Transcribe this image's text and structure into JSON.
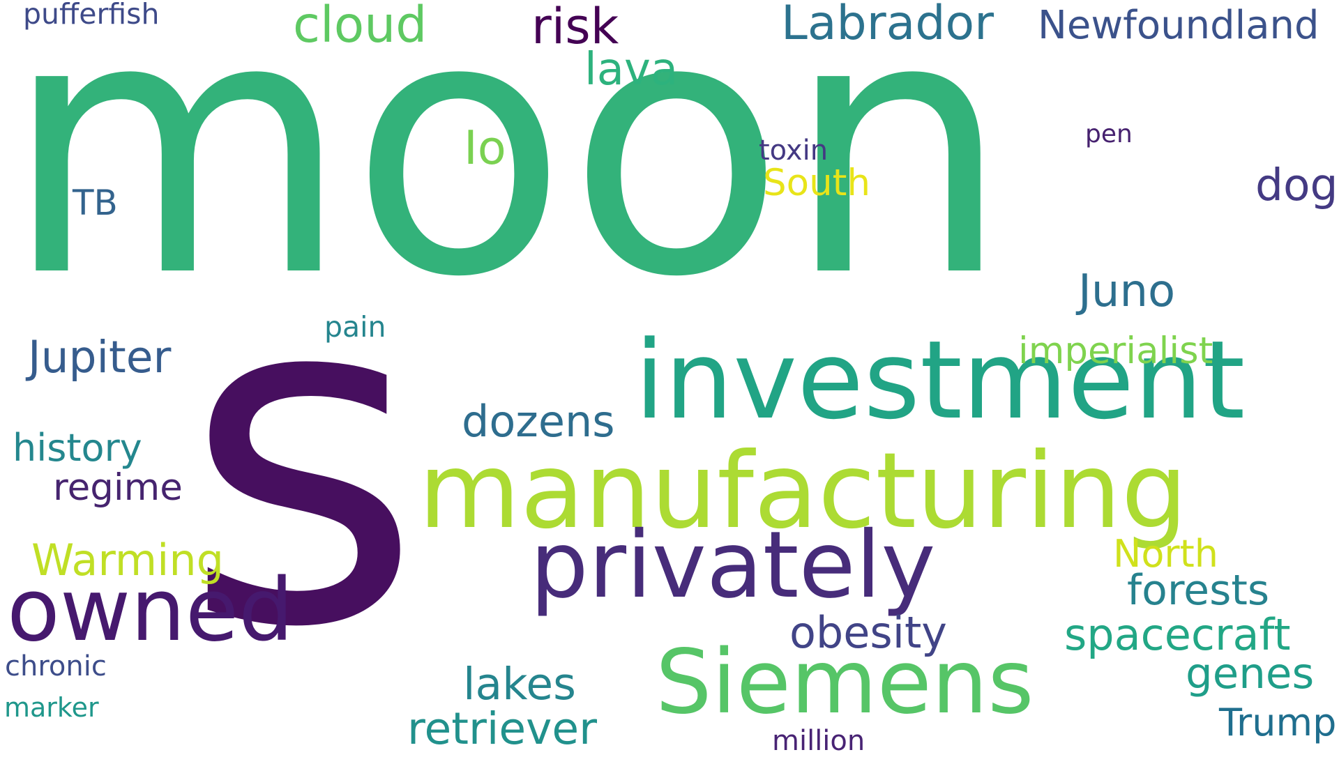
{
  "words": [
    {
      "text": "moon",
      "color": "#33b27a"
    },
    {
      "text": "s",
      "color": "#470f5f"
    },
    {
      "text": "investment",
      "color": "#21a485"
    },
    {
      "text": "manufacturing",
      "color": "#acdb33"
    },
    {
      "text": "privately",
      "color": "#472c7a"
    },
    {
      "text": "owned",
      "color": "#46196e"
    },
    {
      "text": "Siemens",
      "color": "#56c567"
    },
    {
      "text": "pufferfish",
      "color": "#3e4a89"
    },
    {
      "text": "cloud",
      "color": "#5ec962"
    },
    {
      "text": "risk",
      "color": "#440154"
    },
    {
      "text": "Labrador",
      "color": "#2c728e"
    },
    {
      "text": "Newfoundland",
      "color": "#3b528b"
    },
    {
      "text": "lava",
      "color": "#2db27d"
    },
    {
      "text": "Io",
      "color": "#7ad151"
    },
    {
      "text": "toxin",
      "color": "#443983"
    },
    {
      "text": "pen",
      "color": "#46216f"
    },
    {
      "text": "South",
      "color": "#e8e419"
    },
    {
      "text": "dog",
      "color": "#443a83"
    },
    {
      "text": "TB",
      "color": "#33638d"
    },
    {
      "text": "Juno",
      "color": "#2d6f8e"
    },
    {
      "text": "pain",
      "color": "#25858e"
    },
    {
      "text": "Jupiter",
      "color": "#365c8d"
    },
    {
      "text": "imperialist",
      "color": "#7fd34e"
    },
    {
      "text": "dozens",
      "color": "#2e6d8e"
    },
    {
      "text": "history",
      "color": "#24878e"
    },
    {
      "text": "regime",
      "color": "#46246f"
    },
    {
      "text": "Warming",
      "color": "#c0df25"
    },
    {
      "text": "North",
      "color": "#d0e11c"
    },
    {
      "text": "forests",
      "color": "#26828e"
    },
    {
      "text": "obesity",
      "color": "#414487"
    },
    {
      "text": "spacecraft",
      "color": "#22a785"
    },
    {
      "text": "genes",
      "color": "#1f9e89"
    },
    {
      "text": "chronic",
      "color": "#3d4d8a"
    },
    {
      "text": "lakes",
      "color": "#25858e"
    },
    {
      "text": "marker",
      "color": "#1f978b"
    },
    {
      "text": "retriever",
      "color": "#21918c"
    },
    {
      "text": "Trump",
      "color": "#1f6e8e"
    },
    {
      "text": "million",
      "color": "#482374"
    }
  ]
}
